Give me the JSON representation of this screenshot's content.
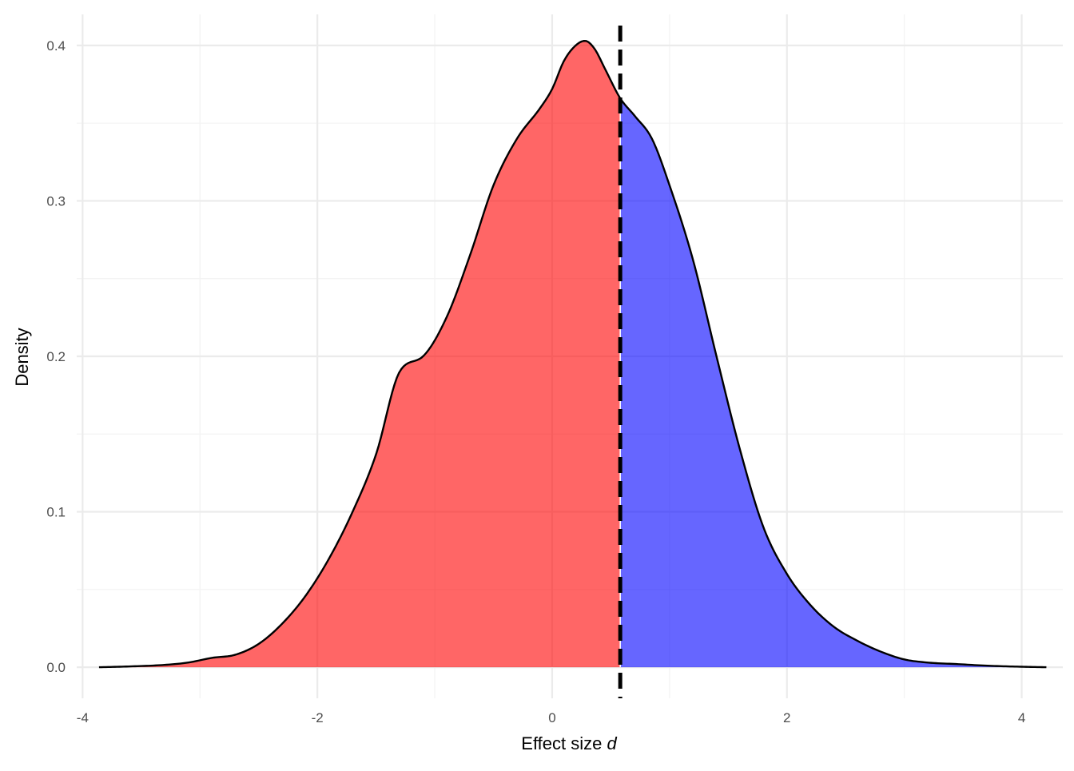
{
  "chart_data": {
    "type": "area",
    "title": "",
    "xlabel_text": "Effect size ",
    "xlabel_symbol": "d",
    "ylabel": "Density",
    "xlim": [
      -4.05,
      4.35
    ],
    "ylim": [
      -0.02,
      0.42
    ],
    "x_ticks": [
      -4,
      -2,
      0,
      2,
      4
    ],
    "x_tick_labels": [
      "-4",
      "-2",
      "0",
      "2",
      "4"
    ],
    "x_minor_ticks": [
      -3,
      -1,
      1,
      3
    ],
    "y_ticks": [
      0.0,
      0.1,
      0.2,
      0.3,
      0.4
    ],
    "y_tick_labels": [
      "0.0",
      "0.1",
      "0.2",
      "0.3",
      "0.4"
    ],
    "y_minor_ticks": [
      0.05,
      0.15,
      0.25,
      0.35
    ],
    "grid": true,
    "legend": "none",
    "threshold": 0.58,
    "colors": {
      "below_threshold": "#ff0000",
      "above_threshold": "#0000ff",
      "fill_opacity": 0.6,
      "curve": "#000000",
      "threshold_line": "#000000",
      "grid_major": "#ebebeb",
      "grid_minor": "#f3f3f3"
    },
    "series": [
      {
        "x": [
          -3.86,
          -3.6,
          -3.3,
          -3.1,
          -2.9,
          -2.7,
          -2.5,
          -2.3,
          -2.1,
          -1.9,
          -1.7,
          -1.5,
          -1.3,
          -1.1,
          -0.9,
          -0.7,
          -0.5,
          -0.3,
          -0.1,
          0.0,
          0.1,
          0.2,
          0.28,
          0.36,
          0.45,
          0.58,
          0.7,
          0.85,
          1.0,
          1.2,
          1.4,
          1.6,
          1.8,
          2.0,
          2.2,
          2.4,
          2.6,
          2.8,
          3.0,
          3.2,
          3.45,
          3.7,
          4.0,
          4.21
        ],
        "y": [
          0.0,
          0.0005,
          0.0015,
          0.003,
          0.006,
          0.008,
          0.015,
          0.028,
          0.046,
          0.07,
          0.1,
          0.137,
          0.19,
          0.2,
          0.225,
          0.265,
          0.31,
          0.34,
          0.36,
          0.372,
          0.39,
          0.4,
          0.403,
          0.398,
          0.385,
          0.366,
          0.355,
          0.34,
          0.31,
          0.262,
          0.2,
          0.14,
          0.09,
          0.06,
          0.04,
          0.026,
          0.017,
          0.01,
          0.005,
          0.003,
          0.002,
          0.001,
          0.0003,
          0.0
        ]
      }
    ]
  }
}
